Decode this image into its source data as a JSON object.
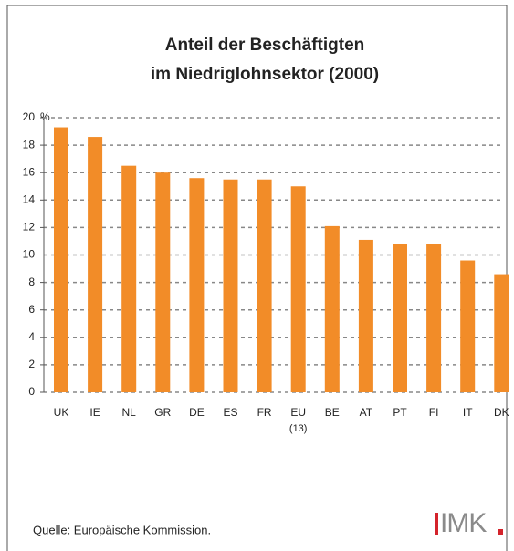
{
  "chart_data": {
    "type": "bar",
    "title": [
      "Anteil der Beschäftigten",
      "im Niedriglohnsektor (2000)"
    ],
    "y_unit": "%",
    "categories": [
      "UK",
      "IE",
      "NL",
      "GR",
      "DE",
      "ES",
      "FR",
      "EU (13)",
      "BE",
      "AT",
      "PT",
      "FI",
      "IT",
      "DK"
    ],
    "values": [
      19.3,
      18.6,
      16.5,
      16.0,
      15.6,
      15.5,
      15.5,
      15.0,
      12.1,
      11.1,
      10.8,
      10.8,
      9.6,
      8.6
    ],
    "color": "#f28c28",
    "ylim": [
      0,
      20
    ],
    "yticks": [
      0,
      2,
      4,
      6,
      8,
      10,
      12,
      14,
      16,
      18,
      20
    ],
    "grid": true,
    "source": "Quelle: Europäische Kommission.",
    "logo": "IMK"
  }
}
